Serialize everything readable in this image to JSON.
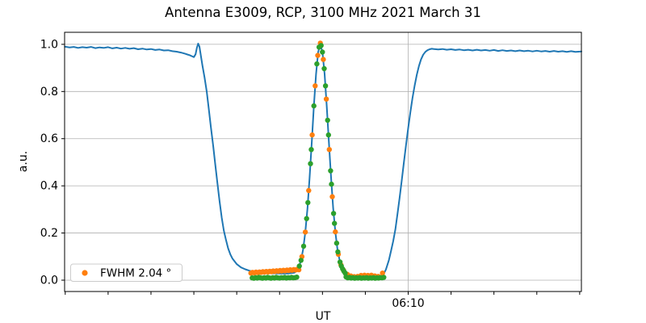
{
  "title": "Antenna E3009, RCP, 3100 MHz 2021 March 31",
  "axes": {
    "xlabel": "UT",
    "ylabel": "a.u."
  },
  "legend": {
    "label": "FWHM 2.04 °",
    "marker_color": "#ff7f0e"
  },
  "colors": {
    "line_blue": "#1f77b4",
    "scatter_orange": "#ff7f0e",
    "scatter_green": "#2ca02c",
    "grid": "#b0b0b0",
    "spine": "#000000"
  },
  "chart_data": {
    "type": "line",
    "x_axis": {
      "unit": "minutes after 06:00 UT",
      "min": 1.985,
      "max": 14.04,
      "minor_ticks": [
        2,
        3,
        4,
        5,
        6,
        7,
        8,
        9,
        10,
        11,
        12,
        13,
        14
      ],
      "major_ticks": [
        {
          "value": 10,
          "label": "06:10"
        }
      ],
      "grid_on_major": true
    },
    "y_axis": {
      "min": -0.048,
      "max": 1.051,
      "ticks": [
        0.0,
        0.2,
        0.4,
        0.6,
        0.8,
        1.0
      ],
      "tick_labels": [
        "0.0",
        "0.2",
        "0.4",
        "0.6",
        "0.8",
        "1.0"
      ],
      "grid": true
    },
    "series": [
      {
        "name": "scan-line",
        "type": "line",
        "color": "#1f77b4",
        "points": [
          [
            1.99,
            0.99
          ],
          [
            2.1,
            0.987
          ],
          [
            2.2,
            0.989
          ],
          [
            2.3,
            0.985
          ],
          [
            2.4,
            0.988
          ],
          [
            2.5,
            0.986
          ],
          [
            2.6,
            0.989
          ],
          [
            2.7,
            0.984
          ],
          [
            2.8,
            0.987
          ],
          [
            2.9,
            0.985
          ],
          [
            3.0,
            0.988
          ],
          [
            3.1,
            0.983
          ],
          [
            3.2,
            0.986
          ],
          [
            3.3,
            0.982
          ],
          [
            3.4,
            0.985
          ],
          [
            3.5,
            0.981
          ],
          [
            3.6,
            0.984
          ],
          [
            3.7,
            0.979
          ],
          [
            3.8,
            0.982
          ],
          [
            3.9,
            0.978
          ],
          [
            4.0,
            0.98
          ],
          [
            4.1,
            0.976
          ],
          [
            4.2,
            0.978
          ],
          [
            4.3,
            0.974
          ],
          [
            4.4,
            0.975
          ],
          [
            4.5,
            0.971
          ],
          [
            4.6,
            0.969
          ],
          [
            4.7,
            0.965
          ],
          [
            4.8,
            0.96
          ],
          [
            4.85,
            0.957
          ],
          [
            4.9,
            0.954
          ],
          [
            4.95,
            0.95
          ],
          [
            5.0,
            0.946
          ],
          [
            5.04,
            0.958
          ],
          [
            5.07,
            0.985
          ],
          [
            5.1,
            1.003
          ],
          [
            5.13,
            0.99
          ],
          [
            5.16,
            0.955
          ],
          [
            5.2,
            0.91
          ],
          [
            5.25,
            0.86
          ],
          [
            5.3,
            0.8
          ],
          [
            5.35,
            0.725
          ],
          [
            5.4,
            0.645
          ],
          [
            5.45,
            0.57
          ],
          [
            5.5,
            0.49
          ],
          [
            5.55,
            0.41
          ],
          [
            5.6,
            0.335
          ],
          [
            5.65,
            0.265
          ],
          [
            5.7,
            0.21
          ],
          [
            5.75,
            0.17
          ],
          [
            5.8,
            0.135
          ],
          [
            5.85,
            0.11
          ],
          [
            5.9,
            0.092
          ],
          [
            6.0,
            0.068
          ],
          [
            6.1,
            0.054
          ],
          [
            6.2,
            0.046
          ],
          [
            6.3,
            0.04
          ],
          [
            6.45,
            0.034
          ],
          [
            6.6,
            0.031
          ],
          [
            6.8,
            0.029
          ],
          [
            7.0,
            0.028
          ],
          [
            7.2,
            0.028
          ],
          [
            7.35,
            0.032
          ],
          [
            7.4,
            0.04
          ],
          [
            7.45,
            0.056
          ],
          [
            7.5,
            0.084
          ],
          [
            7.55,
            0.131
          ],
          [
            7.6,
            0.204
          ],
          [
            7.65,
            0.305
          ],
          [
            7.7,
            0.435
          ],
          [
            7.75,
            0.585
          ],
          [
            7.8,
            0.739
          ],
          [
            7.85,
            0.874
          ],
          [
            7.9,
            0.967
          ],
          [
            7.95,
            1.0
          ],
          [
            8.0,
            0.967
          ],
          [
            8.05,
            0.874
          ],
          [
            8.1,
            0.739
          ],
          [
            8.15,
            0.585
          ],
          [
            8.2,
            0.435
          ],
          [
            8.25,
            0.305
          ],
          [
            8.3,
            0.204
          ],
          [
            8.35,
            0.131
          ],
          [
            8.4,
            0.084
          ],
          [
            8.45,
            0.056
          ],
          [
            8.5,
            0.04
          ],
          [
            8.55,
            0.03
          ],
          [
            8.6,
            0.024
          ],
          [
            8.7,
            0.018
          ],
          [
            8.8,
            0.014
          ],
          [
            8.95,
            0.012
          ],
          [
            9.1,
            0.011
          ],
          [
            9.25,
            0.012
          ],
          [
            9.35,
            0.016
          ],
          [
            9.42,
            0.024
          ],
          [
            9.48,
            0.045
          ],
          [
            9.55,
            0.085
          ],
          [
            9.6,
            0.125
          ],
          [
            9.65,
            0.165
          ],
          [
            9.7,
            0.215
          ],
          [
            9.75,
            0.28
          ],
          [
            9.8,
            0.35
          ],
          [
            9.85,
            0.425
          ],
          [
            9.9,
            0.5
          ],
          [
            9.95,
            0.575
          ],
          [
            10.0,
            0.645
          ],
          [
            10.05,
            0.712
          ],
          [
            10.1,
            0.772
          ],
          [
            10.15,
            0.825
          ],
          [
            10.2,
            0.87
          ],
          [
            10.25,
            0.908
          ],
          [
            10.3,
            0.936
          ],
          [
            10.35,
            0.956
          ],
          [
            10.4,
            0.968
          ],
          [
            10.45,
            0.975
          ],
          [
            10.5,
            0.979
          ],
          [
            10.55,
            0.981
          ],
          [
            10.6,
            0.98
          ],
          [
            10.7,
            0.978
          ],
          [
            10.8,
            0.98
          ],
          [
            10.9,
            0.977
          ],
          [
            11.0,
            0.979
          ],
          [
            11.1,
            0.976
          ],
          [
            11.2,
            0.978
          ],
          [
            11.3,
            0.975
          ],
          [
            11.4,
            0.977
          ],
          [
            11.5,
            0.974
          ],
          [
            11.6,
            0.977
          ],
          [
            11.7,
            0.974
          ],
          [
            11.8,
            0.976
          ],
          [
            11.9,
            0.973
          ],
          [
            12.0,
            0.976
          ],
          [
            12.1,
            0.972
          ],
          [
            12.2,
            0.975
          ],
          [
            12.3,
            0.972
          ],
          [
            12.4,
            0.974
          ],
          [
            12.5,
            0.971
          ],
          [
            12.6,
            0.974
          ],
          [
            12.7,
            0.971
          ],
          [
            12.8,
            0.973
          ],
          [
            12.9,
            0.97
          ],
          [
            13.0,
            0.973
          ],
          [
            13.1,
            0.97
          ],
          [
            13.2,
            0.972
          ],
          [
            13.3,
            0.969
          ],
          [
            13.4,
            0.972
          ],
          [
            13.5,
            0.969
          ],
          [
            13.6,
            0.971
          ],
          [
            13.7,
            0.968
          ],
          [
            13.8,
            0.971
          ],
          [
            13.9,
            0.968
          ],
          [
            14.04,
            0.97
          ]
        ]
      },
      {
        "name": "fwhm-fit-points",
        "type": "scatter",
        "color": "#ff7f0e",
        "legend": "FWHM 2.04 °",
        "points": [
          [
            6.33,
            0.03
          ],
          [
            6.37,
            0.033
          ],
          [
            6.41,
            0.031
          ],
          [
            6.45,
            0.034
          ],
          [
            6.49,
            0.032
          ],
          [
            6.53,
            0.035
          ],
          [
            6.57,
            0.033
          ],
          [
            6.61,
            0.036
          ],
          [
            6.65,
            0.034
          ],
          [
            6.69,
            0.037
          ],
          [
            6.73,
            0.035
          ],
          [
            6.77,
            0.038
          ],
          [
            6.81,
            0.036
          ],
          [
            6.85,
            0.039
          ],
          [
            6.89,
            0.037
          ],
          [
            6.93,
            0.04
          ],
          [
            6.97,
            0.038
          ],
          [
            7.01,
            0.041
          ],
          [
            7.05,
            0.039
          ],
          [
            7.09,
            0.042
          ],
          [
            7.13,
            0.04
          ],
          [
            7.17,
            0.043
          ],
          [
            7.21,
            0.041
          ],
          [
            7.25,
            0.044
          ],
          [
            7.29,
            0.042
          ],
          [
            7.33,
            0.045
          ],
          [
            7.37,
            0.043
          ],
          [
            7.41,
            0.046
          ],
          [
            7.45,
            0.044
          ],
          [
            7.52,
            0.1
          ],
          [
            7.6,
            0.204
          ],
          [
            7.68,
            0.38
          ],
          [
            7.76,
            0.616
          ],
          [
            7.83,
            0.824
          ],
          [
            7.89,
            0.953
          ],
          [
            7.95,
            1.005
          ],
          [
            8.02,
            0.936
          ],
          [
            8.09,
            0.768
          ],
          [
            8.16,
            0.554
          ],
          [
            8.23,
            0.354
          ],
          [
            8.3,
            0.205
          ],
          [
            8.37,
            0.11
          ],
          [
            8.43,
            0.065
          ],
          [
            8.49,
            0.042
          ],
          [
            8.58,
            0.025
          ],
          [
            8.66,
            0.018
          ],
          [
            8.74,
            0.015
          ],
          [
            8.82,
            0.016
          ],
          [
            8.9,
            0.02
          ],
          [
            8.98,
            0.021
          ],
          [
            9.06,
            0.02
          ],
          [
            9.14,
            0.021
          ],
          [
            9.22,
            0.018
          ],
          [
            9.3,
            0.016
          ],
          [
            9.4,
            0.03
          ]
        ]
      },
      {
        "name": "background-subtracted-points",
        "type": "scatter",
        "color": "#2ca02c",
        "points": [
          [
            6.36,
            0.01
          ],
          [
            6.4,
            0.008
          ],
          [
            6.44,
            0.011
          ],
          [
            6.48,
            0.009
          ],
          [
            6.52,
            0.012
          ],
          [
            6.56,
            0.01
          ],
          [
            6.6,
            0.008
          ],
          [
            6.64,
            0.011
          ],
          [
            6.68,
            0.009
          ],
          [
            6.72,
            0.012
          ],
          [
            6.76,
            0.01
          ],
          [
            6.8,
            0.008
          ],
          [
            6.84,
            0.011
          ],
          [
            6.88,
            0.009
          ],
          [
            6.92,
            0.012
          ],
          [
            6.96,
            0.01
          ],
          [
            7.0,
            0.009
          ],
          [
            7.04,
            0.011
          ],
          [
            7.08,
            0.01
          ],
          [
            7.12,
            0.012
          ],
          [
            7.16,
            0.009
          ],
          [
            7.2,
            0.011
          ],
          [
            7.24,
            0.01
          ],
          [
            7.28,
            0.012
          ],
          [
            7.32,
            0.01
          ],
          [
            7.36,
            0.011
          ],
          [
            7.4,
            0.013
          ],
          [
            7.46,
            0.06
          ],
          [
            7.5,
            0.084
          ],
          [
            7.56,
            0.144
          ],
          [
            7.63,
            0.261
          ],
          [
            7.66,
            0.329
          ],
          [
            7.72,
            0.494
          ],
          [
            7.74,
            0.554
          ],
          [
            7.8,
            0.739
          ],
          [
            7.87,
            0.917
          ],
          [
            7.92,
            0.988
          ],
          [
            7.97,
            0.995
          ],
          [
            8.0,
            0.967
          ],
          [
            8.04,
            0.897
          ],
          [
            8.07,
            0.824
          ],
          [
            8.12,
            0.678
          ],
          [
            8.14,
            0.616
          ],
          [
            8.19,
            0.464
          ],
          [
            8.21,
            0.407
          ],
          [
            8.26,
            0.283
          ],
          [
            8.28,
            0.241
          ],
          [
            8.33,
            0.157
          ],
          [
            8.36,
            0.12
          ],
          [
            8.41,
            0.077
          ],
          [
            8.44,
            0.06
          ],
          [
            8.47,
            0.048
          ],
          [
            8.5,
            0.038
          ],
          [
            8.53,
            0.03
          ],
          [
            8.55,
            0.014
          ],
          [
            8.59,
            0.01
          ],
          [
            8.63,
            0.012
          ],
          [
            8.67,
            0.009
          ],
          [
            8.71,
            0.011
          ],
          [
            8.75,
            0.008
          ],
          [
            8.79,
            0.01
          ],
          [
            8.83,
            0.009
          ],
          [
            8.87,
            0.011
          ],
          [
            8.91,
            0.008
          ],
          [
            8.95,
            0.01
          ],
          [
            8.99,
            0.009
          ],
          [
            9.03,
            0.011
          ],
          [
            9.07,
            0.008
          ],
          [
            9.11,
            0.01
          ],
          [
            9.15,
            0.009
          ],
          [
            9.19,
            0.011
          ],
          [
            9.23,
            0.008
          ],
          [
            9.27,
            0.01
          ],
          [
            9.31,
            0.009
          ],
          [
            9.35,
            0.011
          ],
          [
            9.39,
            0.01
          ],
          [
            9.43,
            0.012
          ]
        ]
      }
    ]
  }
}
